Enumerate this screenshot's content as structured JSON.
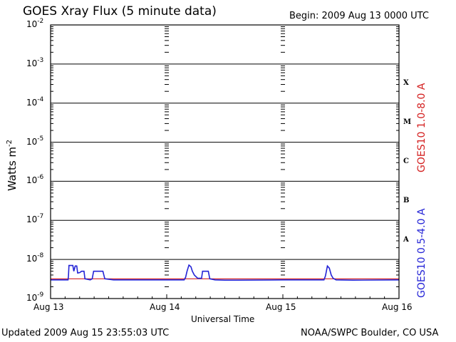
{
  "header": {
    "title": "GOES Xray Flux (5 minute data)",
    "begin": "Begin:  2009 Aug 13 0000 UTC"
  },
  "footer": {
    "updated": "Updated 2009 Aug 15 23:55:03 UTC",
    "credit": "NOAA/SWPC Boulder, CO USA"
  },
  "chart_data": {
    "type": "line",
    "title": "GOES Xray Flux (5 minute data)",
    "xlabel": "Universal Time",
    "ylabel": "Watts m",
    "ylabel_exponent": "-2",
    "y_scale": "log",
    "ylim": [
      1e-09,
      0.01
    ],
    "y_ticks": [
      {
        "base": "10",
        "exp": "-2",
        "value": 0.01
      },
      {
        "base": "10",
        "exp": "-3",
        "value": 0.001
      },
      {
        "base": "10",
        "exp": "-4",
        "value": 0.0001
      },
      {
        "base": "10",
        "exp": "-5",
        "value": 1e-05
      },
      {
        "base": "10",
        "exp": "-6",
        "value": 1e-06
      },
      {
        "base": "10",
        "exp": "-7",
        "value": 1e-07
      },
      {
        "base": "10",
        "exp": "-8",
        "value": 1e-08
      },
      {
        "base": "10",
        "exp": "-9",
        "value": 1e-09
      }
    ],
    "x_unit": "hours from 2009 Aug 13 0000 UTC",
    "xlim": [
      0,
      72
    ],
    "x_ticks": [
      {
        "label": "Aug 13",
        "x": 0
      },
      {
        "label": "Aug 14",
        "x": 24
      },
      {
        "label": "Aug 15",
        "x": 48
      },
      {
        "label": "Aug 16",
        "x": 72
      }
    ],
    "flare_classes": [
      {
        "label": "X",
        "low": 0.0001,
        "high": 0.001
      },
      {
        "label": "M",
        "low": 1e-05,
        "high": 0.0001
      },
      {
        "label": "C",
        "low": 1e-06,
        "high": 1e-05
      },
      {
        "label": "B",
        "low": 1e-07,
        "high": 1e-06
      },
      {
        "label": "A",
        "low": 1e-08,
        "high": 1e-07
      }
    ],
    "series": [
      {
        "name": "GOES10 1.0-8.0 A",
        "color": "#d42020",
        "points": [
          [
            0,
            3.2e-09
          ],
          [
            72,
            3.2e-09
          ]
        ]
      },
      {
        "name": "GOES10 0.5-4.0 A",
        "color": "#2323d6",
        "points": [
          [
            0,
            3e-09
          ],
          [
            3.6,
            3e-09
          ],
          [
            3.7,
            3.8e-09
          ],
          [
            3.8,
            7e-09
          ],
          [
            4.6,
            7e-09
          ],
          [
            4.8,
            5e-09
          ],
          [
            5.1,
            6.8e-09
          ],
          [
            5.4,
            6.8e-09
          ],
          [
            5.6,
            4.5e-09
          ],
          [
            6.0,
            4.6e-09
          ],
          [
            6.4,
            5e-09
          ],
          [
            6.9,
            5e-09
          ],
          [
            7.1,
            3.2e-09
          ],
          [
            8.2,
            3e-09
          ],
          [
            8.6,
            3.2e-09
          ],
          [
            8.9,
            5e-09
          ],
          [
            10.8,
            5e-09
          ],
          [
            11.2,
            3.2e-09
          ],
          [
            13.0,
            3e-09
          ],
          [
            24.0,
            3e-09
          ],
          [
            27.6,
            3e-09
          ],
          [
            27.9,
            3.5e-09
          ],
          [
            28.2,
            5e-09
          ],
          [
            28.6,
            7.2e-09
          ],
          [
            29.0,
            6.5e-09
          ],
          [
            29.3,
            5e-09
          ],
          [
            29.7,
            4e-09
          ],
          [
            30.4,
            3.3e-09
          ],
          [
            31.2,
            3.3e-09
          ],
          [
            31.4,
            5e-09
          ],
          [
            32.6,
            5e-09
          ],
          [
            32.9,
            3.2e-09
          ],
          [
            34.0,
            3e-09
          ],
          [
            36.0,
            2.95e-09
          ],
          [
            38.5,
            2.95e-09
          ],
          [
            48.0,
            3e-09
          ],
          [
            56.5,
            3e-09
          ],
          [
            56.8,
            3.8e-09
          ],
          [
            57.2,
            6.8e-09
          ],
          [
            57.6,
            6e-09
          ],
          [
            58.0,
            4e-09
          ],
          [
            58.4,
            3.3e-09
          ],
          [
            59.0,
            3e-09
          ],
          [
            62.5,
            2.95e-09
          ],
          [
            72,
            3e-09
          ]
        ]
      }
    ]
  }
}
